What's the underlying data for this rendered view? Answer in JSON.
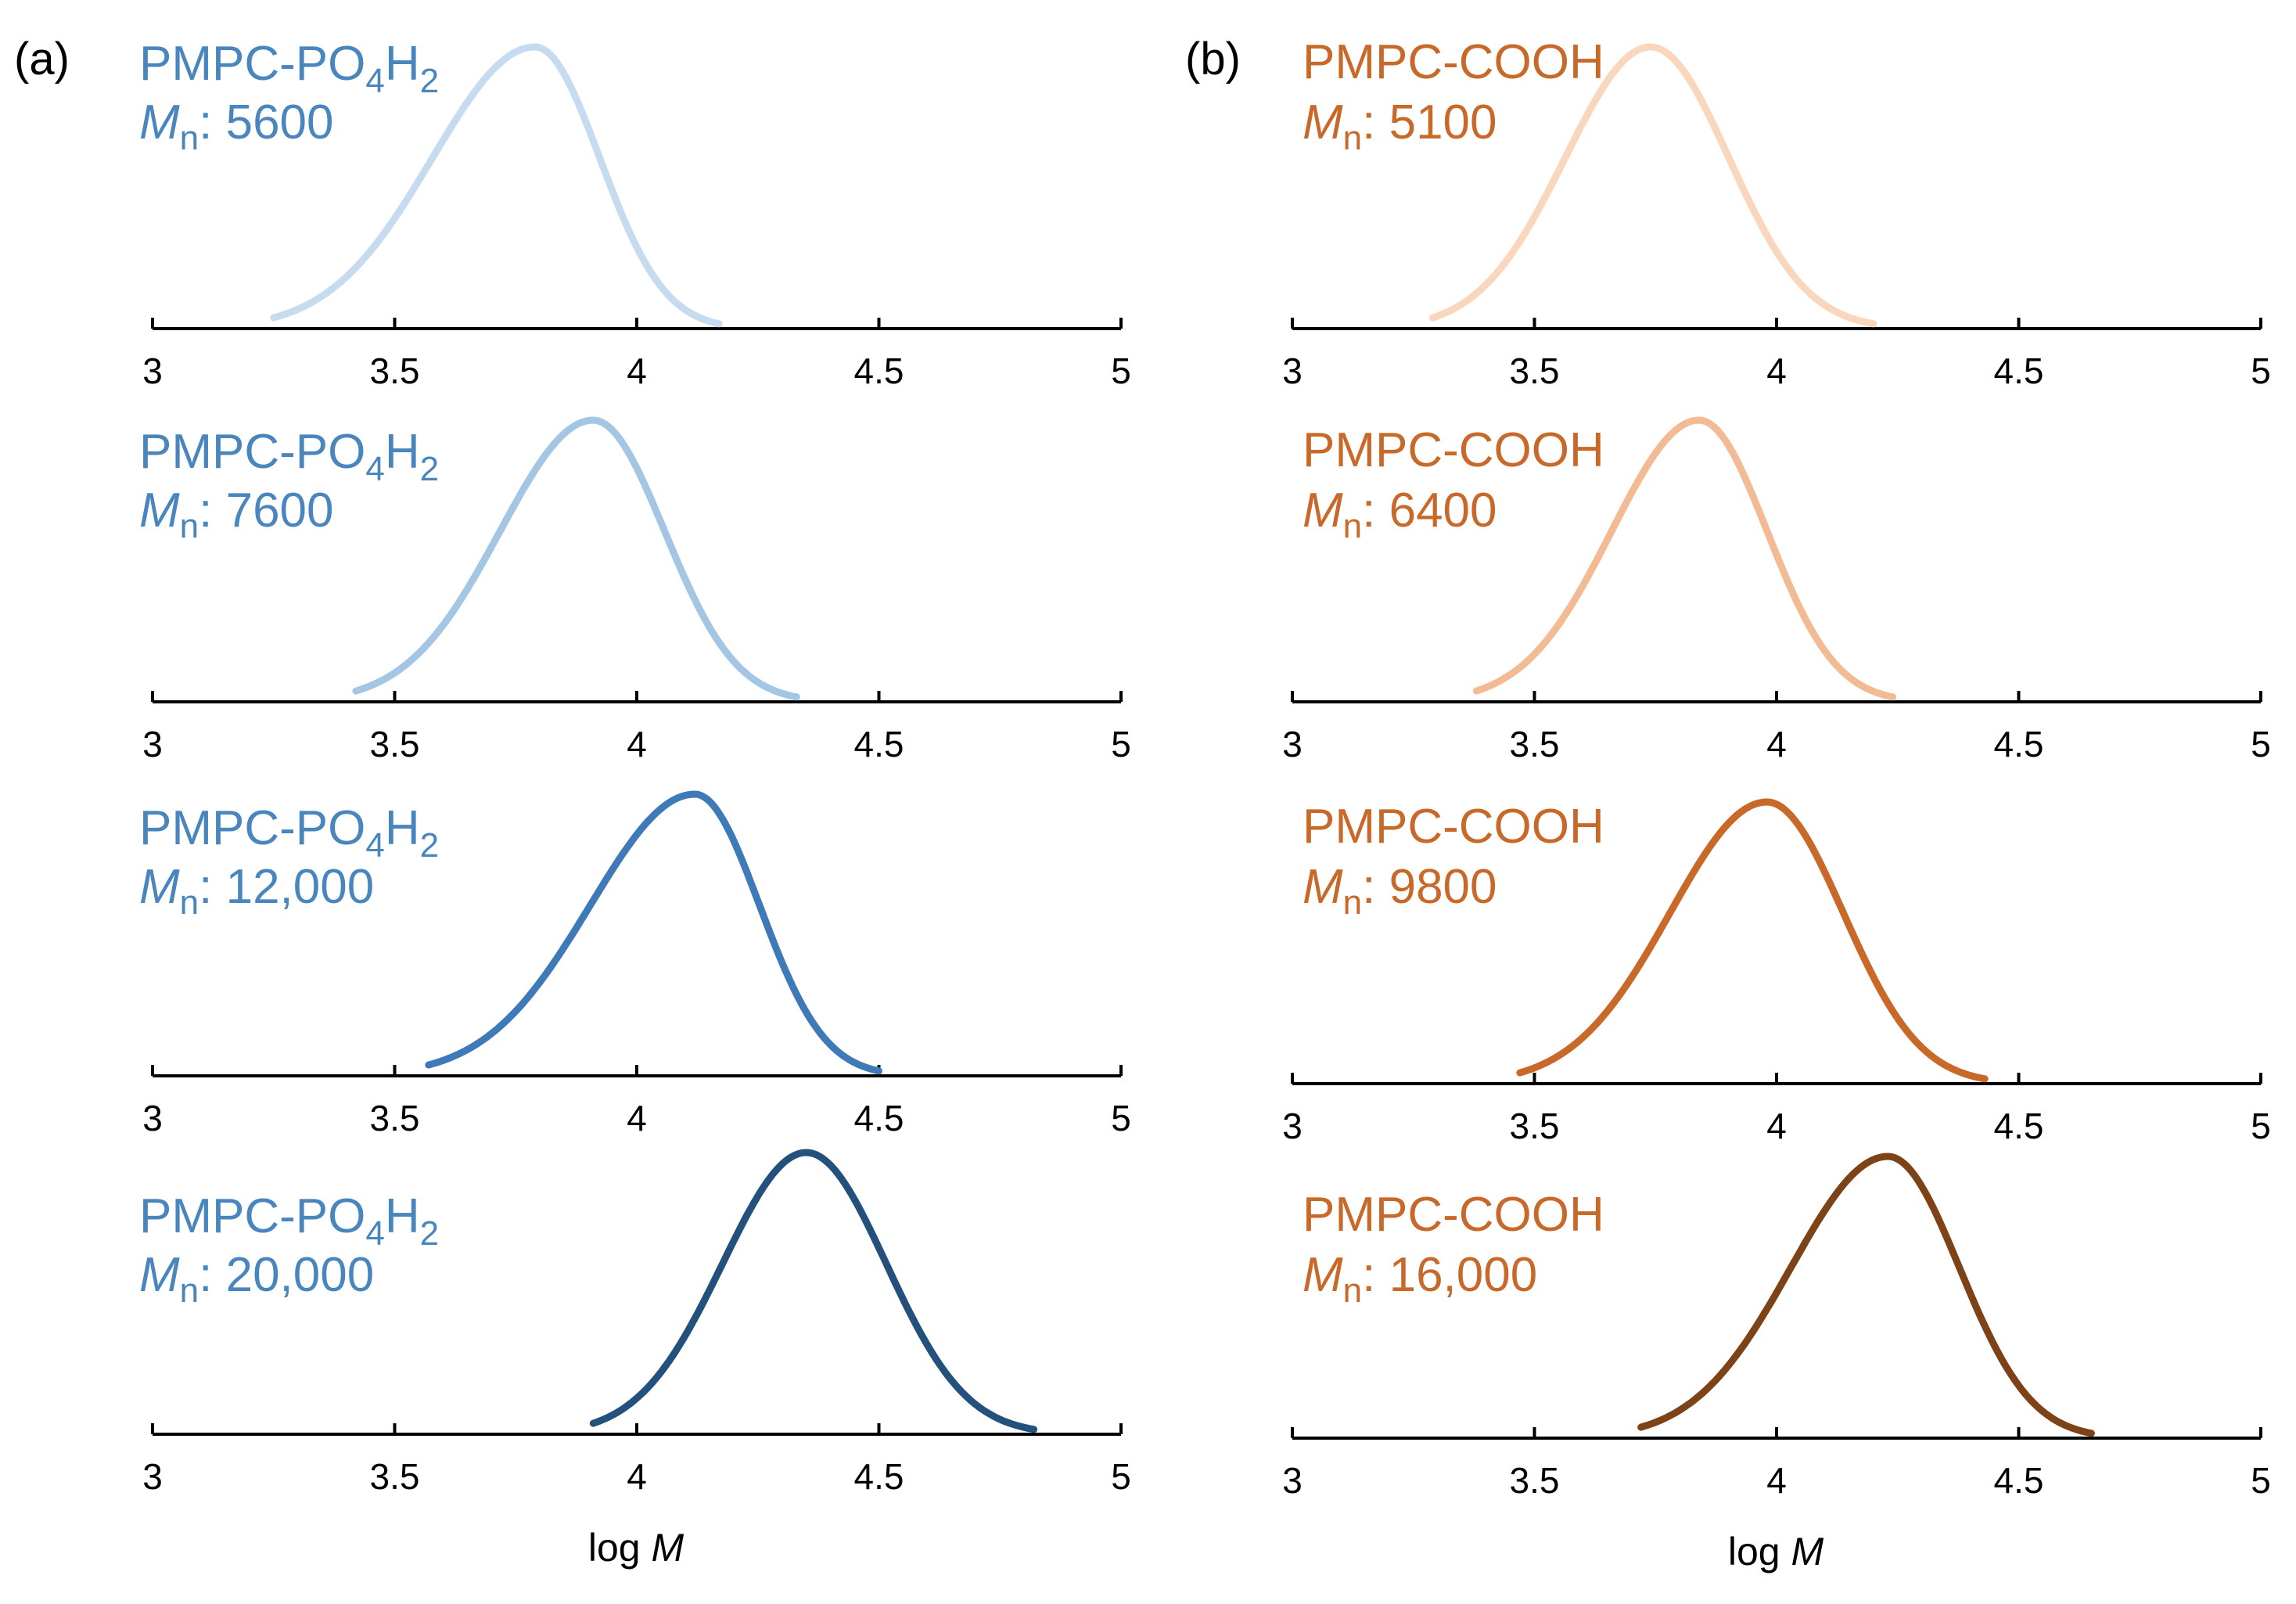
{
  "chart_data": [
    {
      "panel_label": "(a)",
      "type": "line",
      "xlabel": "log M",
      "xlabel_text": "log",
      "xlabel_italic": "M",
      "xlim": [
        3,
        5
      ],
      "x_ticks": [
        "3",
        "3.5",
        "4",
        "4.5",
        "5"
      ],
      "x_tick_values": [
        3,
        3.5,
        4,
        4.5,
        5
      ],
      "grid": false,
      "series": [
        {
          "name": "PMPC-PO4H2",
          "name_main": "PMPC-PO",
          "sub1": "4",
          "mid": "H",
          "sub2": "2",
          "mn_label": "M",
          "mn_sub": "n",
          "mn_value": ": 5600",
          "peak_logM": 3.79,
          "x_range": [
            3.25,
            4.17
          ],
          "color": "#c6dbef",
          "label_color": "#4a86be"
        },
        {
          "name": "PMPC-PO4H2",
          "name_main": "PMPC-PO",
          "sub1": "4",
          "mid": "H",
          "sub2": "2",
          "mn_label": "M",
          "mn_sub": "n",
          "mn_value": ": 7600",
          "peak_logM": 3.91,
          "x_range": [
            3.42,
            4.33
          ],
          "color": "#a2c6e4",
          "label_color": "#4a86be"
        },
        {
          "name": "PMPC-PO4H2",
          "name_main": "PMPC-PO",
          "sub1": "4",
          "mid": "H",
          "sub2": "2",
          "mn_label": "M",
          "mn_sub": "n",
          "mn_value": ": 12,000",
          "peak_logM": 4.12,
          "x_range": [
            3.57,
            4.5
          ],
          "color": "#3e7ab8",
          "label_color": "#4a86be"
        },
        {
          "name": "PMPC-PO4H2",
          "name_main": "PMPC-PO",
          "sub1": "4",
          "mid": "H",
          "sub2": "2",
          "mn_label": "M",
          "mn_sub": "n",
          "mn_value": ": 20,000",
          "peak_logM": 4.35,
          "x_range": [
            3.91,
            4.82
          ],
          "color": "#23507c",
          "label_color": "#4a86be"
        }
      ]
    },
    {
      "panel_label": "(b)",
      "type": "line",
      "xlabel": "log M",
      "xlabel_text": "log",
      "xlabel_italic": "M",
      "xlim": [
        3,
        5
      ],
      "x_ticks": [
        "3",
        "3.5",
        "4",
        "4.5",
        "5"
      ],
      "x_tick_values": [
        3,
        3.5,
        4,
        4.5,
        5
      ],
      "grid": false,
      "series": [
        {
          "name": "PMPC-COOH",
          "name_main": "PMPC-COOH",
          "sub1": "",
          "mid": "",
          "sub2": "",
          "mn_label": "M",
          "mn_sub": "n",
          "mn_value": ": 5100",
          "peak_logM": 3.74,
          "x_range": [
            3.29,
            4.2
          ],
          "color": "#f9d6bc",
          "label_color": "#c8692a"
        },
        {
          "name": "PMPC-COOH",
          "name_main": "PMPC-COOH",
          "sub1": "",
          "mid": "",
          "sub2": "",
          "mn_label": "M",
          "mn_sub": "n",
          "mn_value": ": 6400",
          "peak_logM": 3.84,
          "x_range": [
            3.38,
            4.24
          ],
          "color": "#f3bb94",
          "label_color": "#c8692a"
        },
        {
          "name": "PMPC-COOH",
          "name_main": "PMPC-COOH",
          "sub1": "",
          "mid": "",
          "sub2": "",
          "mn_label": "M",
          "mn_sub": "n",
          "mn_value": ": 9800",
          "peak_logM": 3.98,
          "x_range": [
            3.47,
            4.43
          ],
          "color": "#c8692a",
          "label_color": "#c8692a"
        },
        {
          "name": "PMPC-COOH",
          "name_main": "PMPC-COOH",
          "sub1": "",
          "mid": "",
          "sub2": "",
          "mn_label": "M",
          "mn_sub": "n",
          "mn_value": ": 16,000",
          "peak_logM": 4.23,
          "x_range": [
            3.72,
            4.65
          ],
          "color": "#7e4217",
          "label_color": "#c8692a"
        }
      ]
    }
  ]
}
